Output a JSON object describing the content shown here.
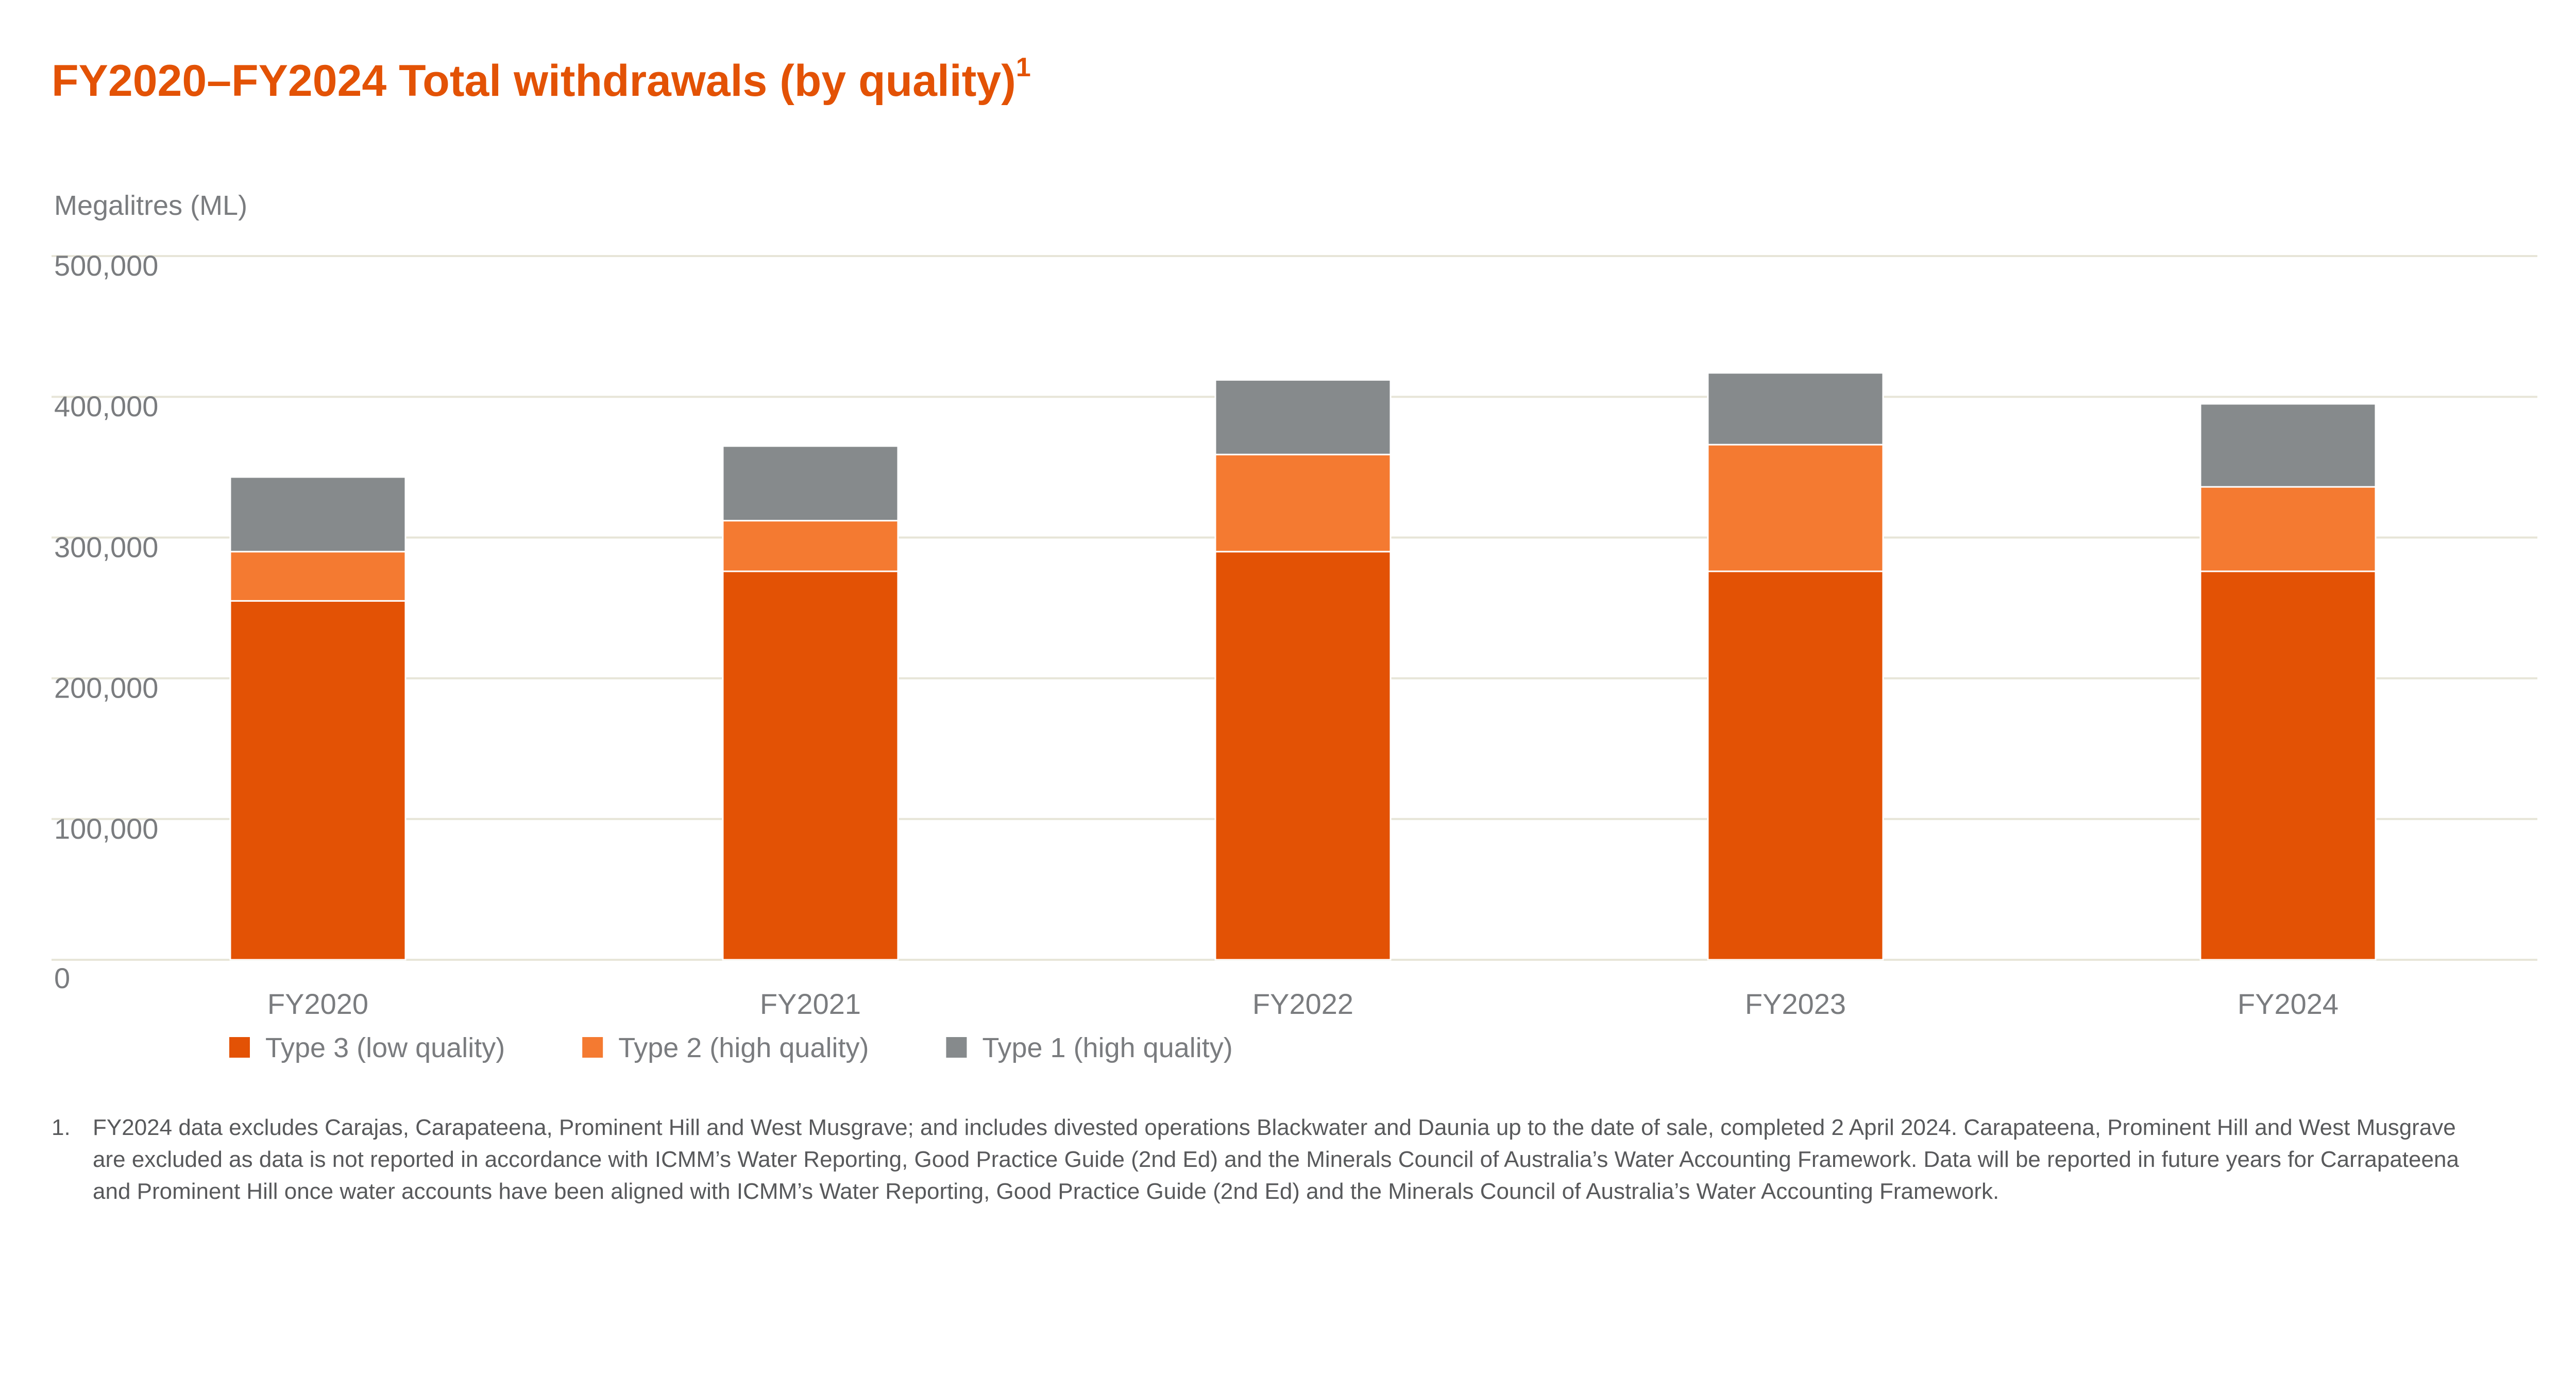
{
  "title": "FY2020–FY2024 Total withdrawals (by quality)",
  "title_sup": "1",
  "colors": {
    "title": "#e35205",
    "text": "#7a7c7f",
    "grid": "#e7e5d8"
  },
  "chart_data": {
    "type": "bar",
    "stacked": true,
    "ylabel": "Megalitres (ML)",
    "ylim": [
      0,
      500000
    ],
    "yticks": [
      0,
      100000,
      200000,
      300000,
      400000,
      500000
    ],
    "ytick_labels": [
      "0",
      "100,000",
      "200,000",
      "300,000",
      "400,000",
      "500,000"
    ],
    "grid": true,
    "legend_position": "bottom-left",
    "categories": [
      "FY2020",
      "FY2021",
      "FY2022",
      "FY2023",
      "FY2024"
    ],
    "series": [
      {
        "name": "Type 3 (low quality)",
        "color": "#e35205",
        "values": [
          255000,
          276000,
          290000,
          276000,
          276000
        ]
      },
      {
        "name": "Type 2 (high quality)",
        "color": "#f47a31",
        "values": [
          35000,
          36000,
          69000,
          90000,
          60000
        ]
      },
      {
        "name": "Type 1 (high quality)",
        "color": "#868a8c",
        "values": [
          53000,
          53000,
          53000,
          51000,
          59000
        ]
      }
    ]
  },
  "footnote": {
    "number": "1.",
    "text": "FY2024 data excludes Carajas, Carapateena, Prominent Hill and West Musgrave; and includes divested operations Blackwater and Daunia up to the date of sale, completed 2 April 2024. Carapateena, Prominent Hill and West Musgrave are excluded as data is not reported in accordance with ICMM’s Water Reporting, Good Practice Guide (2nd Ed) and the Minerals Council of Australia’s Water Accounting Framework. Data will be reported in future years for Carrapateena and Prominent Hill once water accounts have been aligned with ICMM’s Water Reporting, Good Practice Guide (2nd Ed) and the Minerals Council of Australia’s Water Accounting Framework."
  }
}
